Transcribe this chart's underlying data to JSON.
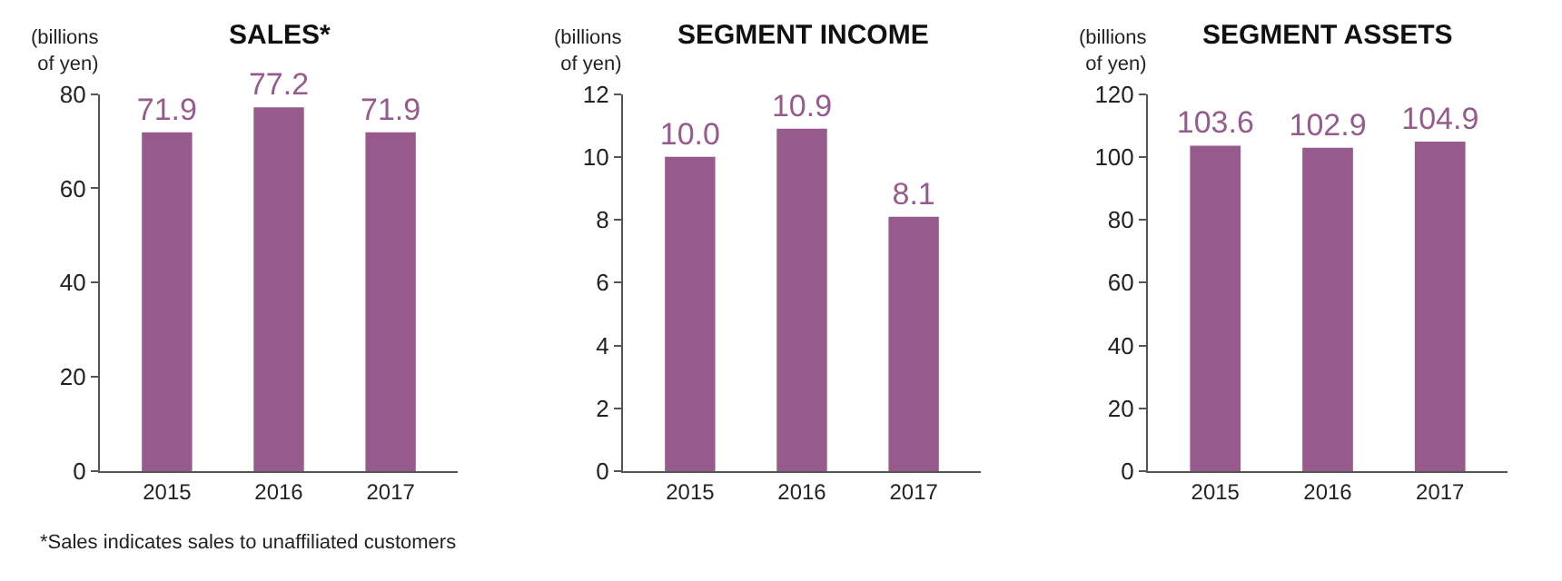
{
  "chart_data": [
    {
      "type": "bar",
      "title": "SALES*",
      "ylabel": "(billions of yen)",
      "categories": [
        "2015",
        "2016",
        "2017"
      ],
      "values": [
        71.9,
        77.2,
        71.9
      ],
      "value_labels": [
        "71.9",
        "77.2",
        "71.9"
      ],
      "color": "#965b8c",
      "ylim": [
        0,
        80
      ],
      "yticks": [
        0,
        20,
        40,
        60,
        80
      ],
      "annotations": [
        "*Sales indicates sales to unaffiliated customers"
      ]
    },
    {
      "type": "bar",
      "title": "SEGMENT INCOME",
      "ylabel": "(billions of yen)",
      "categories": [
        "2015",
        "2016",
        "2017"
      ],
      "values": [
        10.0,
        10.9,
        8.1
      ],
      "value_labels": [
        "10.0",
        "10.9",
        "8.1"
      ],
      "color": "#965b8c",
      "ylim": [
        0,
        12
      ],
      "yticks": [
        0,
        2,
        4,
        6,
        8,
        10,
        12
      ]
    },
    {
      "type": "bar",
      "title": "SEGMENT ASSETS",
      "ylabel": "(billions of yen)",
      "categories": [
        "2015",
        "2016",
        "2017"
      ],
      "values": [
        103.6,
        102.9,
        104.9
      ],
      "value_labels": [
        "103.6",
        "102.9",
        "104.9"
      ],
      "color": "#965b8c",
      "ylim": [
        0,
        120
      ],
      "yticks": [
        0,
        20,
        40,
        60,
        80,
        100,
        120
      ]
    }
  ]
}
